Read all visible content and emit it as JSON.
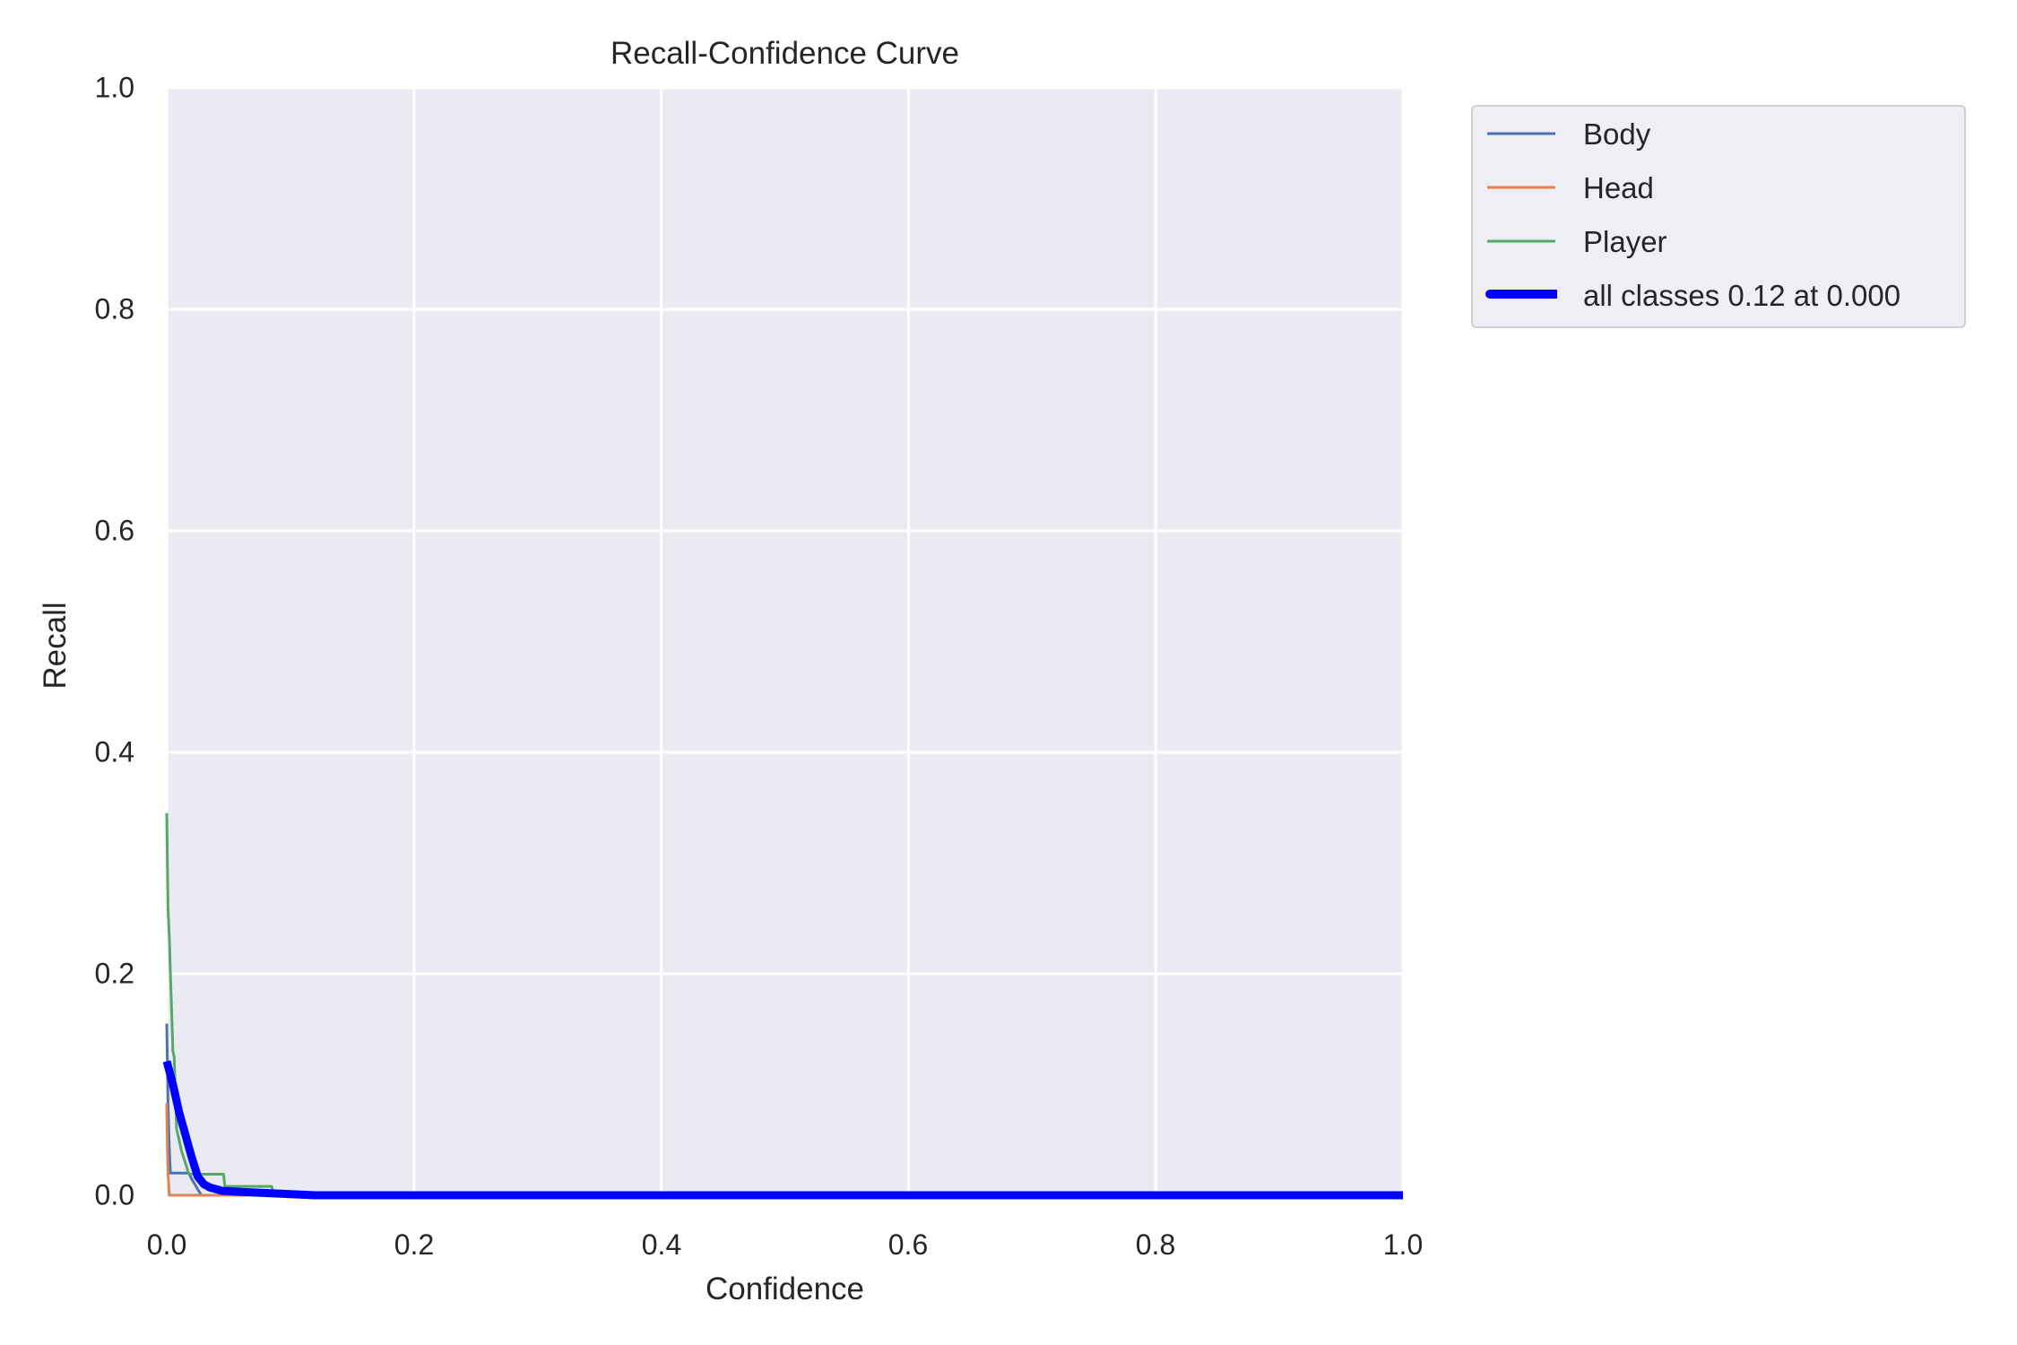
{
  "chart_data": {
    "type": "line",
    "title": "Recall-Confidence Curve",
    "xlabel": "Confidence",
    "ylabel": "Recall",
    "xlim": [
      0.0,
      1.0
    ],
    "ylim": [
      0.0,
      1.0
    ],
    "xticks": [
      "0.0",
      "0.2",
      "0.4",
      "0.6",
      "0.8",
      "1.0"
    ],
    "yticks": [
      "0.0",
      "0.2",
      "0.4",
      "0.6",
      "0.8",
      "1.0"
    ],
    "grid": true,
    "legend_position": "outside upper right",
    "series": [
      {
        "name": "Body",
        "color": "#4c72b0",
        "x": [
          0.0,
          0.0005,
          0.001,
          0.002,
          0.003,
          0.018,
          0.02,
          0.028,
          0.03,
          1.0
        ],
        "y": [
          0.155,
          0.12,
          0.083,
          0.043,
          0.02,
          0.02,
          0.015,
          0.0,
          0.0,
          0.0
        ]
      },
      {
        "name": "Head",
        "color": "#dd8452",
        "x": [
          0.0,
          0.0005,
          0.001,
          0.002,
          1.0
        ],
        "y": [
          0.083,
          0.045,
          0.02,
          0.0,
          0.0
        ]
      },
      {
        "name": "Player",
        "color": "#55a868",
        "x": [
          0.0,
          0.001,
          0.002,
          0.003,
          0.005,
          0.006,
          0.007,
          0.008,
          0.012,
          0.018,
          0.019,
          0.046,
          0.047,
          0.085,
          0.086,
          1.0
        ],
        "y": [
          0.345,
          0.26,
          0.235,
          0.2,
          0.13,
          0.125,
          0.09,
          0.06,
          0.04,
          0.019,
          0.019,
          0.019,
          0.008,
          0.008,
          0.0,
          0.0
        ]
      },
      {
        "name": "all classes 0.12 at 0.000",
        "color": "#0000ff",
        "x": [
          0.0,
          0.005,
          0.01,
          0.015,
          0.02,
          0.025,
          0.03,
          0.035,
          0.045,
          0.06,
          0.08,
          0.1,
          0.12,
          0.2,
          0.4,
          0.6,
          0.8,
          1.0
        ],
        "y": [
          0.121,
          0.1,
          0.075,
          0.055,
          0.035,
          0.017,
          0.01,
          0.007,
          0.004,
          0.003,
          0.002,
          0.001,
          0.0,
          0.0,
          0.0,
          0.0,
          0.0,
          0.0
        ]
      }
    ]
  },
  "legend": {
    "items": [
      {
        "label": "Body",
        "color": "#4c72b0"
      },
      {
        "label": "Head",
        "color": "#dd8452"
      },
      {
        "label": "Player",
        "color": "#55a868"
      },
      {
        "label": "all classes 0.12 at 0.000",
        "color": "#0000ff"
      }
    ]
  },
  "colors": {
    "plot_background": "#eaeaf2",
    "grid": "#ffffff",
    "text": "#262626"
  }
}
